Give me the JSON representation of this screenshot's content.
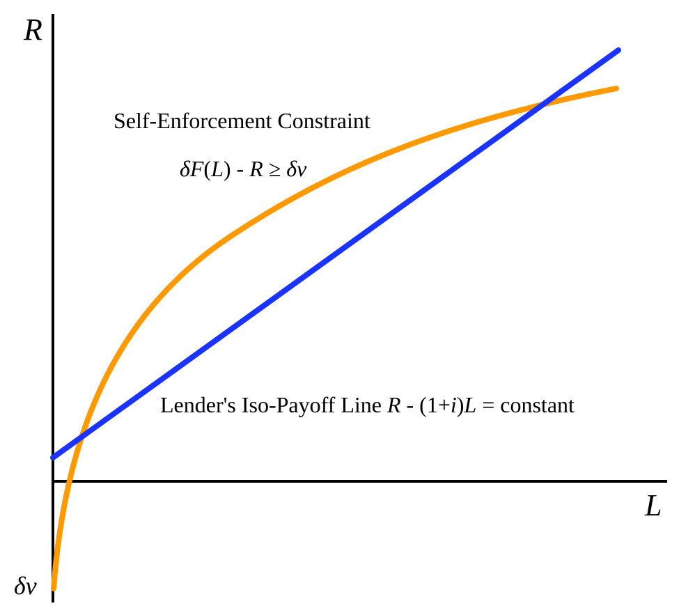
{
  "axes": {
    "y_label": "R",
    "x_label": "L",
    "origin_label_delta": "δ",
    "origin_label_v": "v"
  },
  "constraint": {
    "title": "Self-Enforcement Constraint",
    "eq_delta1": "δ",
    "eq_F": "F",
    "eq_paren_open": "(",
    "eq_L": "L",
    "eq_paren_close": ") - ",
    "eq_R": "R",
    "eq_geq": " ≥ ",
    "eq_delta2": "δ",
    "eq_v": "v",
    "color": "#FF9900"
  },
  "iso_payoff": {
    "prefix": "Lender's Iso-Payoff Line ",
    "R": "R",
    "minus": " - (1+",
    "i": "i",
    "close": ")",
    "L": "L",
    "suffix": " = constant",
    "color": "#1A33FF"
  }
}
